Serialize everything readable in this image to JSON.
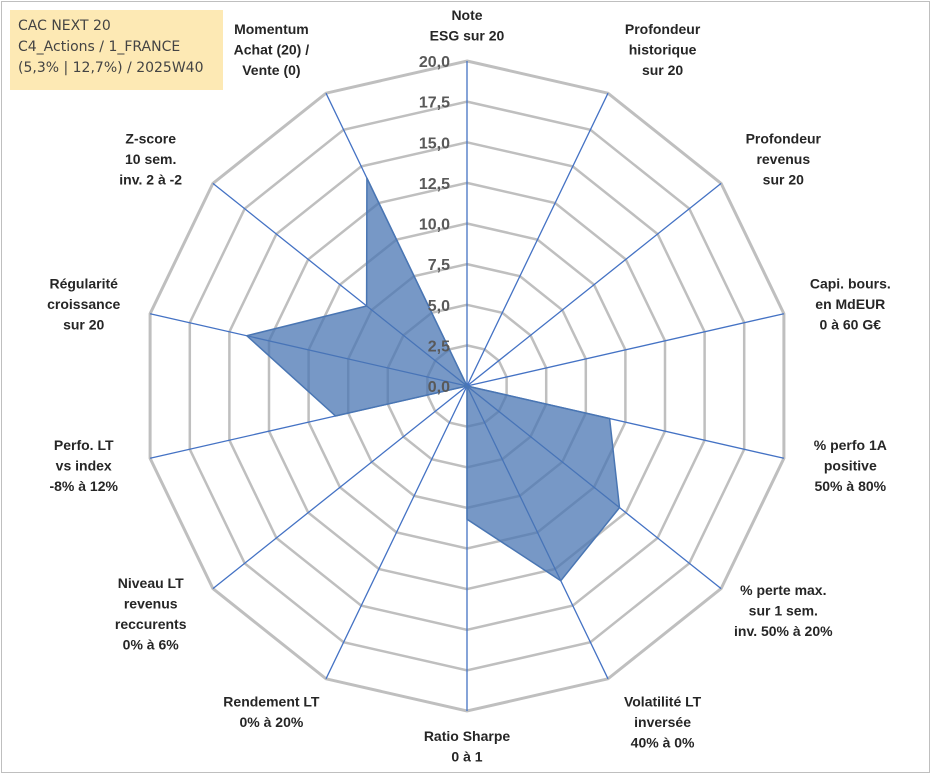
{
  "info": {
    "line1": "CAC NEXT 20",
    "line2": "C4_Actions / 1_FRANCE",
    "line3": "(5,3% | 12,7%) / 2025W40"
  },
  "colors": {
    "grid": "#bfbfbf",
    "spoke": "#4472c4",
    "fill": "#4a76b3",
    "fill_opacity": 0.75,
    "outline": "#4a76b3"
  },
  "chart_data": {
    "type": "radar",
    "title": "",
    "rmin": 0,
    "rmax": 20,
    "tick_step": 2.5,
    "tick_labels": [
      "0,0",
      "2,5",
      "5,0",
      "7,5",
      "10,0",
      "12,5",
      "15,0",
      "17,5",
      "20,0"
    ],
    "axes": [
      [
        "Note",
        "ESG sur 20"
      ],
      [
        "Profondeur",
        "historique",
        "sur 20"
      ],
      [
        "Profondeur",
        "revenus",
        "sur 20"
      ],
      [
        "Capi. bours.",
        "en MdEUR",
        "0 à 60 G€"
      ],
      [
        "% perfo 1A",
        "positive",
        "50% à 80%"
      ],
      [
        "% perte max.",
        "sur 1 sem.",
        "inv. 50% à 20%"
      ],
      [
        "Volatilité LT",
        "inversée",
        "40% à 0%"
      ],
      [
        "Ratio Sharpe",
        "0 à 1"
      ],
      [
        "Rendement LT",
        "0% à 20%"
      ],
      [
        "Niveau LT",
        "revenus",
        "reccurents",
        "0% à 6%"
      ],
      [
        "Perfo. LT",
        "vs index",
        "-8% à 12%"
      ],
      [
        "Régularité",
        "croissance",
        "sur 20"
      ],
      [
        "Z-score",
        "10 sem.",
        "inv. 2 à -2"
      ],
      [
        "Momentum",
        "Achat (20) /",
        "Vente (0)"
      ]
    ],
    "series": [
      {
        "values": [
          0,
          0,
          0,
          0,
          9,
          12,
          13.3,
          8.2,
          0,
          0,
          8.3,
          13.9,
          7.9,
          14.2
        ]
      }
    ]
  }
}
